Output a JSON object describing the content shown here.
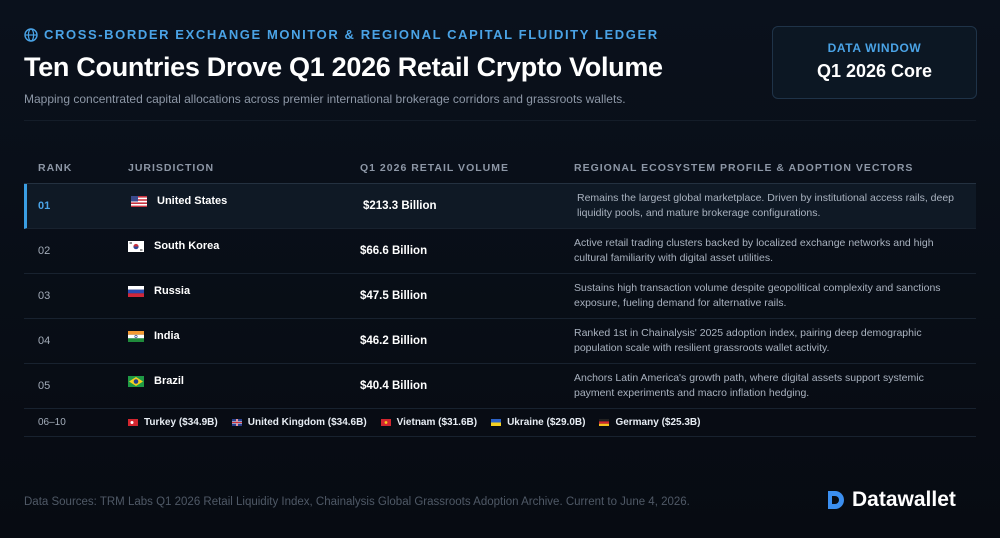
{
  "header": {
    "kicker": "CROSS-BORDER EXCHANGE MONITOR & REGIONAL CAPITAL FLUIDITY LEDGER",
    "title": "Ten Countries Drove Q1 2026 Retail Crypto Volume",
    "subtitle": "Mapping concentrated capital allocations across premier international brokerage corridors and grassroots wallets."
  },
  "badge": {
    "label": "DATA WINDOW",
    "value": "Q1 2026 Core"
  },
  "table": {
    "columns": [
      "RANK",
      "JURISDICTION",
      "Q1 2026 RETAIL VOLUME",
      "REGIONAL ECOSYSTEM PROFILE & ADOPTION VECTORS"
    ],
    "rows": [
      [
        "01",
        "United States",
        "$213.3 Billion",
        "Remains the largest global marketplace. Driven by institutional access rails, deep liquidity pools, and mature brokerage configurations."
      ],
      [
        "02",
        "South Korea",
        "$66.6 Billion",
        "Active retail trading clusters backed by localized exchange networks and high cultural familiarity with digital asset utilities."
      ],
      [
        "03",
        "Russia",
        "$47.5 Billion",
        "Sustains high transaction volume despite geopolitical complexity and sanctions exposure, fueling demand for alternative rails."
      ],
      [
        "04",
        "India",
        "$46.2 Billion",
        "Ranked 1st in Chainalysis' 2025 adoption index, pairing deep demographic population scale with resilient grassroots wallet activity."
      ],
      [
        "05",
        "Brazil",
        "$40.4 Billion",
        "Anchors Latin America's growth path, where digital assets support systemic payment experiments and macro inflation hedging."
      ]
    ]
  },
  "others": {
    "label": "06–10",
    "items": [
      "Turkey ($34.9B)",
      "United Kingdom ($34.6B)",
      "Vietnam ($31.6B)",
      "Ukraine ($29.0B)",
      "Germany ($25.3B)"
    ]
  },
  "footer": {
    "sources": "Data Sources: TRM Labs Q1 2026 Retail Liquidity Index, Chainalysis Global Grassroots Adoption Archive. Current to June 4, 2026.",
    "brand": "Datawallet"
  }
}
